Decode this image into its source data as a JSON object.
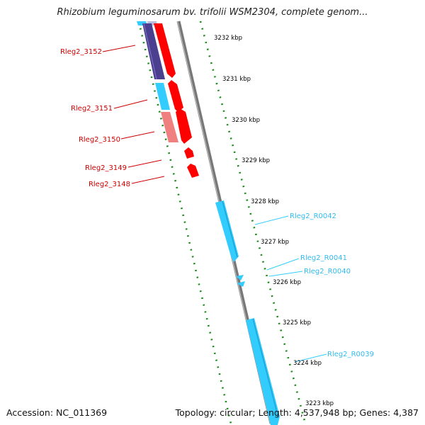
{
  "title": "Rhizobium leguminosarum bv. trifolii WSM2304, complete genom...",
  "footer": {
    "accession": "Accession: NC_011369",
    "summary": "Topology: circular; Length: 4,537,948 bp; Genes: 4,387"
  },
  "colors": {
    "forward_cds": "#ff0000",
    "forward_cds_light": "#f08080",
    "reverse_rna": "#33ccff",
    "dark_feature": "#4b3f8f",
    "backbone": "#888888",
    "tick": "#1a8a1a",
    "ruler_text": "#000000"
  },
  "ruler": {
    "unit": "kbp",
    "ticks": [
      "3232 kbp",
      "3231 kbp",
      "3230 kbp",
      "3229 kbp",
      "3228 kbp",
      "3227 kbp",
      "3226 kbp",
      "3225 kbp",
      "3224 kbp",
      "3223 kbp"
    ]
  },
  "gene_labels": {
    "left": [
      "Rleg2_3152",
      "Rleg2_3151",
      "Rleg2_3150",
      "Rleg2_3149",
      "Rleg2_3148"
    ],
    "right": [
      "Rleg2_R0042",
      "Rleg2_R0041",
      "Rleg2_R0040",
      "Rleg2_R0039"
    ]
  }
}
